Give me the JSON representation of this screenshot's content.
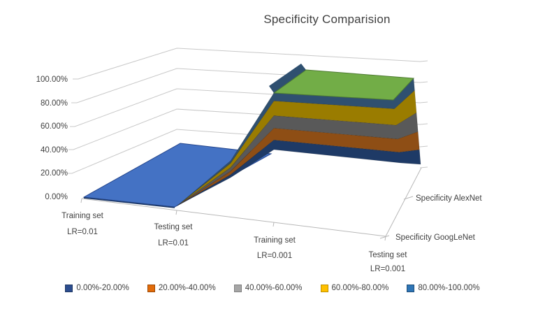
{
  "title": "Specificity Comparision",
  "chart_data": {
    "type": "surface",
    "projection": "3d-perspective",
    "title": "Specificity Comparision",
    "categories": [
      {
        "line1": "Training set",
        "line2": "LR=0.01"
      },
      {
        "line1": "Testing set",
        "line2": "LR=0.01"
      },
      {
        "line1": "Training set",
        "line2": "LR=0.001"
      },
      {
        "line1": "Testing set",
        "line2": "LR=0.001"
      }
    ],
    "series": [
      {
        "name": "Specificity AlexNet",
        "values_pct": [
          0,
          0,
          100,
          100
        ]
      },
      {
        "name": "Specificity GoogLeNet",
        "values_pct": [
          0,
          0,
          100,
          100
        ]
      }
    ],
    "value_axis": {
      "min_pct": 0,
      "max_pct": 100,
      "tick_labels_top_to_bottom": [
        "100.00%",
        "80.00%",
        "60.00%",
        "40.00%",
        "20.00%",
        "0.00%"
      ]
    },
    "legend_position": "bottom",
    "grid_on": true,
    "legend": [
      {
        "label": "0.00%-20.00%",
        "swatch_color": "#2C4D8F",
        "swatch_border": "#1F3864"
      },
      {
        "label": "20.00%-40.00%",
        "swatch_color": "#E26B0A",
        "swatch_border": "#9C4A06"
      },
      {
        "label": "40.00%-60.00%",
        "swatch_color": "#A6A6A6",
        "swatch_border": "#808080"
      },
      {
        "label": "60.00%-80.00%",
        "swatch_color": "#FFC000",
        "swatch_border": "#BF9000"
      },
      {
        "label": "80.00%-100.00%",
        "swatch_color": "#2E75B6",
        "swatch_border": "#1F4E79"
      }
    ],
    "surface_colors": {
      "low_plateau_top": "#4472C4",
      "low_plateau_edge": "#24458C",
      "high_plateau_top": "#72AD47",
      "high_plateau_edge": "#4E7A33",
      "peak_edge_band": "#2F5070",
      "wall_bands_bottom_to_top": [
        "#1E3A66",
        "#8E4E15",
        "#595959",
        "#9A7C00",
        "#2F5070"
      ]
    },
    "grid_color": "#C8C8C8",
    "axis_color": "#B8B8B8",
    "text_color": "#3F3F3F"
  }
}
